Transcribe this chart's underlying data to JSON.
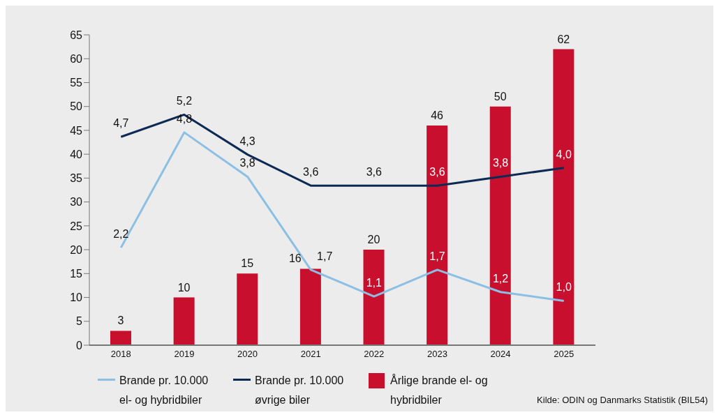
{
  "chart_data": {
    "type": "bar",
    "categories": [
      "2018",
      "2019",
      "2020",
      "2021",
      "2022",
      "2023",
      "2024",
      "2025"
    ],
    "series": [
      {
        "name": "Brande pr. 10.000 el- og hybridbiler",
        "type": "line",
        "axis": "y2",
        "color": "#8bbfe3",
        "values": [
          2.2,
          4.8,
          3.8,
          1.7,
          1.1,
          1.7,
          1.2,
          1.0
        ],
        "value_labels": [
          "2,2",
          "4,8",
          "3,8",
          "1,7",
          "1,1",
          "1,7",
          "1,2",
          "1,0"
        ]
      },
      {
        "name": "Brande pr. 10.000 øvrige biler",
        "type": "line",
        "axis": "y2",
        "color": "#0d2a55",
        "values": [
          4.7,
          5.2,
          4.3,
          3.6,
          3.6,
          3.6,
          3.8,
          4.0
        ],
        "value_labels": [
          "4,7",
          "5,2",
          "4,3",
          "3,6",
          "3,6",
          "3,6",
          "3,8",
          "4,0"
        ]
      },
      {
        "name": "Årlige brande el- og hybridbiler",
        "color": "#c8102e",
        "values": [
          3,
          10,
          15,
          16,
          20,
          46,
          50,
          62
        ],
        "value_labels": [
          "3",
          "10",
          "15",
          "16",
          "20",
          "46",
          "50",
          "62"
        ]
      }
    ],
    "ylim": [
      0,
      65
    ],
    "yticks": [
      0,
      5,
      10,
      15,
      20,
      25,
      30,
      35,
      40,
      45,
      50,
      55,
      60,
      65
    ],
    "y2lim": [
      0,
      7
    ],
    "grid": false,
    "legend": "bottom",
    "marker": "none",
    "line_style": "solid",
    "annotations": [
      "Kilde: ODIN og Danmarks Statistik (BIL54)"
    ]
  }
}
